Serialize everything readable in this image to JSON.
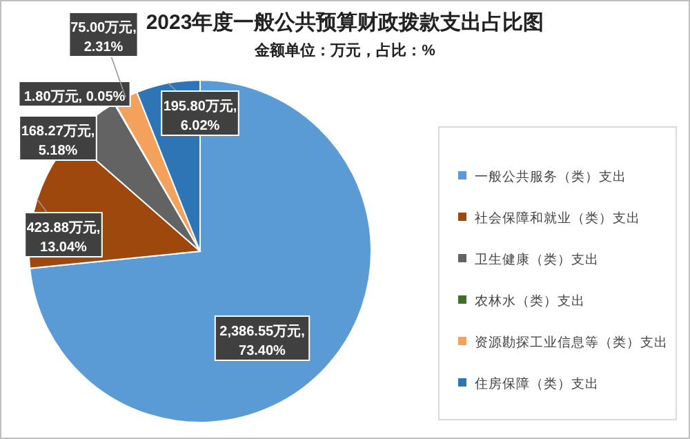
{
  "chart_data": {
    "type": "pie",
    "title": "2023年度一般公共预算财政拨款支出占比图",
    "subtitle": "金额单位：万元，占比：%",
    "categories": [
      "一般公共服务（类）支出",
      "社会保障和就业（类）支出",
      "卫生健康（类）支出",
      "农林水（类）支出",
      "资源勘探工业信息等（类）支出",
      "住房保障（类）支出"
    ],
    "values": [
      2386.55,
      423.88,
      168.27,
      1.8,
      75.0,
      195.8
    ],
    "colors": [
      "#5b9bd5",
      "#9e480e",
      "#636363",
      "#3f6e2a",
      "#f4a25b",
      "#2e75b6"
    ],
    "value_labels": [
      "2,386.55万元, 73.40%",
      "423.88万元, 13.04%",
      "168.27万元, 5.18%",
      "1.80万元, 0.05%",
      "75.00万元, 2.31%",
      "195.80万元, 6.02%"
    ],
    "legend": "right"
  }
}
